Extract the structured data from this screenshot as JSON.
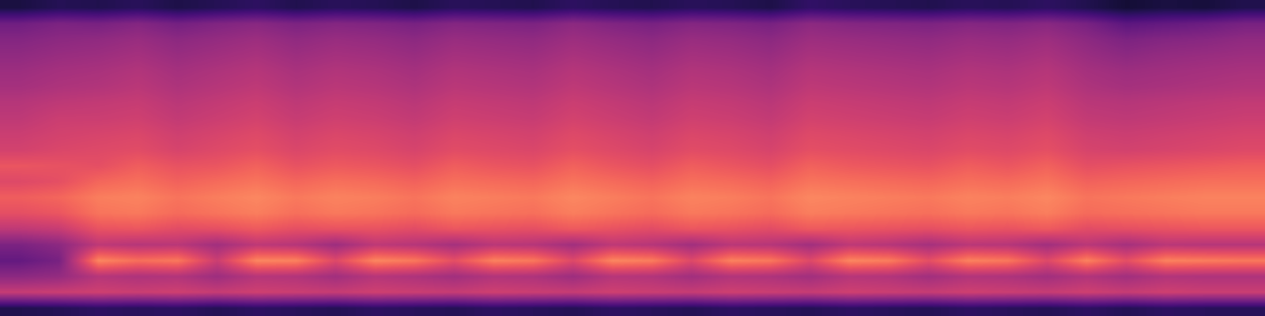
{
  "chart_data": {
    "type": "heatmap",
    "color": "magma",
    "tick_labels": false,
    "color_range": [
      0,
      1
    ],
    "cells": [
      [
        0.12,
        0.15,
        0.14,
        0.16,
        0.13,
        0.15,
        0.17,
        0.14,
        0.16,
        0.15,
        0.13,
        0.16,
        0.15,
        0.14,
        0.17,
        0.15,
        0.14,
        0.16,
        0.15,
        0.13,
        0.18,
        0.16,
        0.15,
        0.14,
        0.16,
        0.15,
        0.17,
        0.14,
        0.1,
        0.12,
        0.11,
        0.14
      ],
      [
        0.33,
        0.36,
        0.35,
        0.38,
        0.34,
        0.37,
        0.39,
        0.36,
        0.38,
        0.37,
        0.35,
        0.38,
        0.37,
        0.36,
        0.4,
        0.37,
        0.35,
        0.38,
        0.37,
        0.35,
        0.4,
        0.38,
        0.37,
        0.36,
        0.38,
        0.37,
        0.39,
        0.35,
        0.28,
        0.3,
        0.32,
        0.35
      ],
      [
        0.38,
        0.4,
        0.41,
        0.43,
        0.4,
        0.42,
        0.44,
        0.41,
        0.43,
        0.42,
        0.4,
        0.43,
        0.42,
        0.41,
        0.44,
        0.42,
        0.4,
        0.43,
        0.42,
        0.4,
        0.44,
        0.43,
        0.42,
        0.41,
        0.43,
        0.42,
        0.44,
        0.4,
        0.36,
        0.38,
        0.39,
        0.41
      ],
      [
        0.41,
        0.43,
        0.44,
        0.46,
        0.43,
        0.45,
        0.47,
        0.44,
        0.46,
        0.45,
        0.43,
        0.46,
        0.45,
        0.44,
        0.47,
        0.45,
        0.43,
        0.46,
        0.45,
        0.43,
        0.47,
        0.46,
        0.45,
        0.44,
        0.46,
        0.45,
        0.47,
        0.43,
        0.4,
        0.42,
        0.43,
        0.44
      ],
      [
        0.44,
        0.46,
        0.47,
        0.49,
        0.46,
        0.48,
        0.5,
        0.47,
        0.49,
        0.48,
        0.46,
        0.49,
        0.48,
        0.47,
        0.5,
        0.48,
        0.46,
        0.49,
        0.48,
        0.46,
        0.5,
        0.49,
        0.48,
        0.47,
        0.49,
        0.48,
        0.5,
        0.46,
        0.44,
        0.45,
        0.46,
        0.47
      ],
      [
        0.46,
        0.48,
        0.49,
        0.51,
        0.48,
        0.5,
        0.52,
        0.49,
        0.51,
        0.5,
        0.48,
        0.51,
        0.5,
        0.49,
        0.52,
        0.5,
        0.48,
        0.51,
        0.5,
        0.48,
        0.52,
        0.51,
        0.5,
        0.49,
        0.51,
        0.5,
        0.52,
        0.48,
        0.46,
        0.47,
        0.48,
        0.49
      ],
      [
        0.5,
        0.52,
        0.53,
        0.54,
        0.51,
        0.53,
        0.55,
        0.52,
        0.54,
        0.53,
        0.51,
        0.54,
        0.53,
        0.52,
        0.55,
        0.53,
        0.51,
        0.54,
        0.53,
        0.51,
        0.55,
        0.54,
        0.53,
        0.52,
        0.54,
        0.53,
        0.55,
        0.51,
        0.5,
        0.51,
        0.52,
        0.53
      ],
      [
        0.52,
        0.55,
        0.55,
        0.56,
        0.53,
        0.55,
        0.57,
        0.54,
        0.56,
        0.55,
        0.53,
        0.56,
        0.55,
        0.54,
        0.57,
        0.55,
        0.53,
        0.56,
        0.55,
        0.53,
        0.57,
        0.56,
        0.55,
        0.54,
        0.56,
        0.55,
        0.57,
        0.53,
        0.52,
        0.53,
        0.54,
        0.55
      ],
      [
        0.55,
        0.57,
        0.58,
        0.59,
        0.56,
        0.58,
        0.6,
        0.57,
        0.59,
        0.58,
        0.56,
        0.59,
        0.58,
        0.57,
        0.6,
        0.58,
        0.56,
        0.59,
        0.58,
        0.56,
        0.6,
        0.59,
        0.58,
        0.57,
        0.59,
        0.58,
        0.6,
        0.56,
        0.55,
        0.56,
        0.57,
        0.58
      ],
      [
        0.57,
        0.59,
        0.6,
        0.61,
        0.58,
        0.6,
        0.62,
        0.59,
        0.61,
        0.6,
        0.58,
        0.61,
        0.6,
        0.59,
        0.62,
        0.6,
        0.58,
        0.61,
        0.6,
        0.58,
        0.62,
        0.61,
        0.6,
        0.59,
        0.61,
        0.6,
        0.62,
        0.58,
        0.57,
        0.58,
        0.59,
        0.6
      ],
      [
        0.64,
        0.63,
        0.62,
        0.66,
        0.63,
        0.64,
        0.67,
        0.63,
        0.65,
        0.64,
        0.62,
        0.66,
        0.64,
        0.63,
        0.67,
        0.64,
        0.62,
        0.66,
        0.64,
        0.62,
        0.67,
        0.65,
        0.64,
        0.63,
        0.66,
        0.64,
        0.67,
        0.62,
        0.63,
        0.64,
        0.65,
        0.66
      ],
      [
        0.6,
        0.62,
        0.68,
        0.7,
        0.67,
        0.69,
        0.71,
        0.68,
        0.7,
        0.69,
        0.67,
        0.7,
        0.69,
        0.68,
        0.71,
        0.69,
        0.67,
        0.7,
        0.69,
        0.67,
        0.71,
        0.7,
        0.69,
        0.68,
        0.7,
        0.69,
        0.71,
        0.67,
        0.68,
        0.69,
        0.7,
        0.7
      ],
      [
        0.66,
        0.68,
        0.73,
        0.74,
        0.71,
        0.73,
        0.75,
        0.72,
        0.74,
        0.73,
        0.71,
        0.74,
        0.73,
        0.72,
        0.75,
        0.73,
        0.71,
        0.74,
        0.73,
        0.71,
        0.75,
        0.74,
        0.73,
        0.72,
        0.74,
        0.73,
        0.75,
        0.71,
        0.72,
        0.73,
        0.74,
        0.74
      ],
      [
        0.62,
        0.64,
        0.71,
        0.72,
        0.69,
        0.71,
        0.73,
        0.7,
        0.72,
        0.71,
        0.69,
        0.72,
        0.71,
        0.7,
        0.73,
        0.71,
        0.69,
        0.72,
        0.71,
        0.69,
        0.73,
        0.72,
        0.71,
        0.7,
        0.72,
        0.71,
        0.73,
        0.69,
        0.7,
        0.71,
        0.72,
        0.72
      ],
      [
        0.52,
        0.54,
        0.63,
        0.64,
        0.61,
        0.62,
        0.65,
        0.62,
        0.63,
        0.63,
        0.61,
        0.64,
        0.63,
        0.62,
        0.65,
        0.63,
        0.61,
        0.64,
        0.63,
        0.61,
        0.65,
        0.64,
        0.63,
        0.62,
        0.64,
        0.63,
        0.65,
        0.61,
        0.62,
        0.63,
        0.64,
        0.64
      ],
      [
        0.36,
        0.4,
        0.52,
        0.5,
        0.51,
        0.45,
        0.52,
        0.5,
        0.44,
        0.52,
        0.5,
        0.46,
        0.51,
        0.5,
        0.45,
        0.52,
        0.5,
        0.45,
        0.51,
        0.5,
        0.45,
        0.52,
        0.5,
        0.46,
        0.51,
        0.5,
        0.45,
        0.51,
        0.46,
        0.51,
        0.5,
        0.5
      ],
      [
        0.3,
        0.35,
        0.75,
        0.7,
        0.72,
        0.55,
        0.75,
        0.74,
        0.6,
        0.75,
        0.72,
        0.62,
        0.74,
        0.72,
        0.6,
        0.75,
        0.73,
        0.6,
        0.74,
        0.72,
        0.6,
        0.75,
        0.73,
        0.62,
        0.74,
        0.72,
        0.6,
        0.74,
        0.62,
        0.74,
        0.73,
        0.72
      ],
      [
        0.4,
        0.42,
        0.5,
        0.48,
        0.49,
        0.44,
        0.5,
        0.49,
        0.45,
        0.5,
        0.48,
        0.45,
        0.49,
        0.48,
        0.44,
        0.5,
        0.49,
        0.45,
        0.49,
        0.48,
        0.45,
        0.5,
        0.49,
        0.45,
        0.49,
        0.48,
        0.45,
        0.49,
        0.45,
        0.49,
        0.48,
        0.48
      ],
      [
        0.54,
        0.55,
        0.56,
        0.55,
        0.56,
        0.54,
        0.56,
        0.55,
        0.54,
        0.56,
        0.55,
        0.54,
        0.56,
        0.55,
        0.54,
        0.56,
        0.55,
        0.54,
        0.56,
        0.55,
        0.54,
        0.56,
        0.55,
        0.54,
        0.56,
        0.55,
        0.54,
        0.56,
        0.54,
        0.56,
        0.55,
        0.55
      ],
      [
        0.14,
        0.15,
        0.17,
        0.16,
        0.17,
        0.15,
        0.17,
        0.16,
        0.15,
        0.17,
        0.16,
        0.15,
        0.17,
        0.16,
        0.15,
        0.17,
        0.16,
        0.15,
        0.17,
        0.16,
        0.15,
        0.17,
        0.16,
        0.15,
        0.17,
        0.16,
        0.15,
        0.17,
        0.15,
        0.17,
        0.16,
        0.16
      ]
    ]
  }
}
